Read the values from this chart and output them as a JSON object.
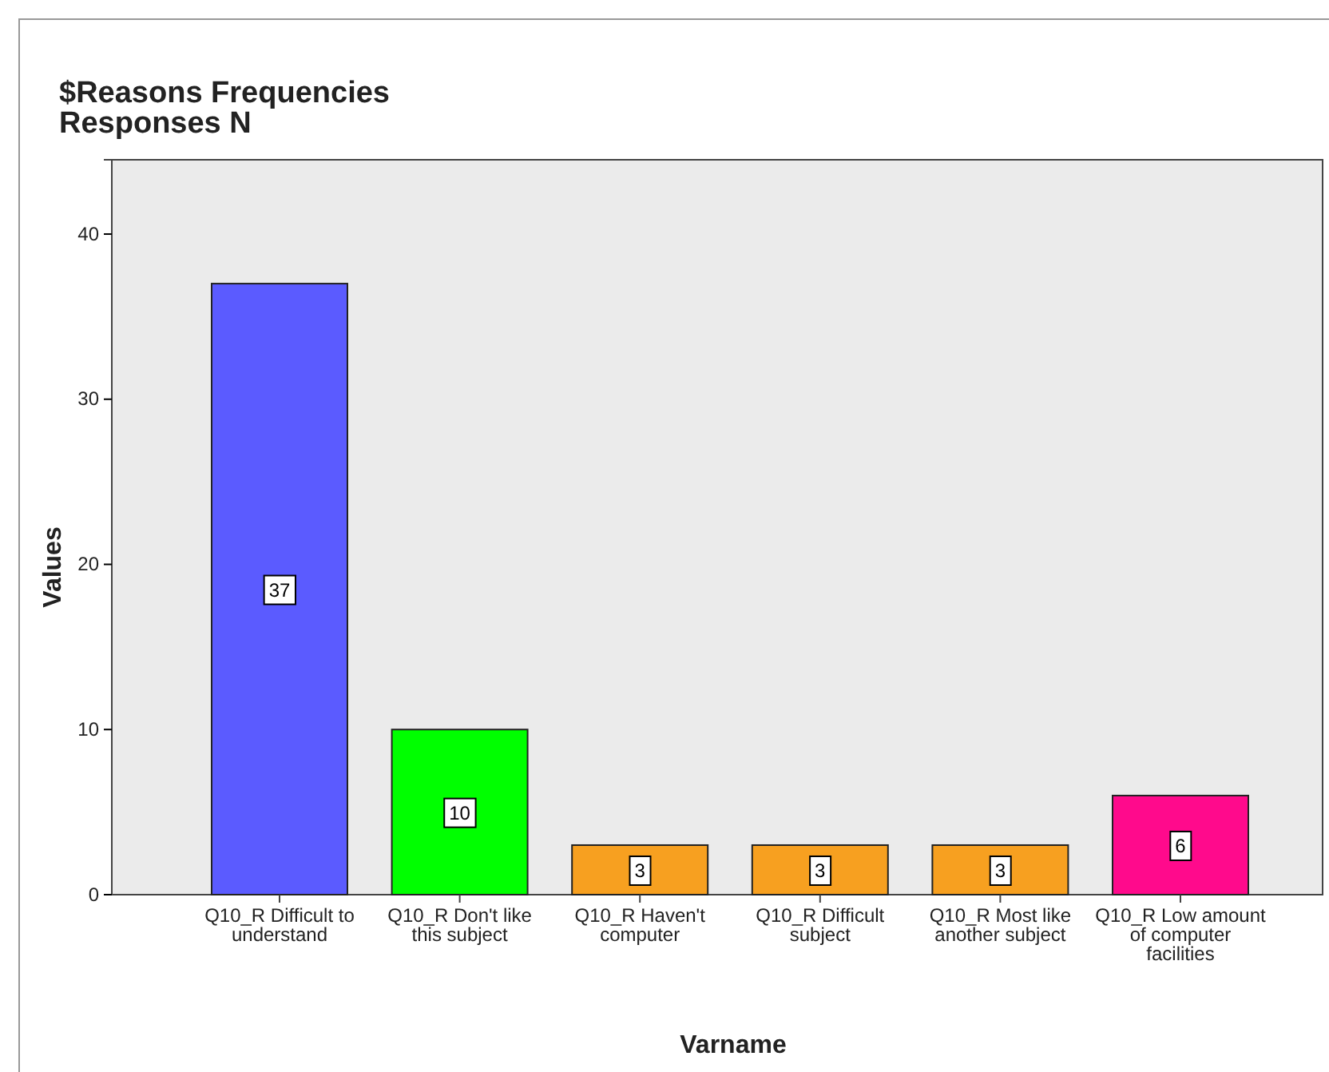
{
  "chart_data": {
    "type": "bar",
    "title": "$Reasons Frequencies",
    "subtitle": "Responses N",
    "categories": [
      "Q10_R Difficult to understand",
      "Q10_R Don't like this subject",
      "Q10_R Haven't computer",
      "Q10_R Difficult subject",
      "Q10_R Most like another subject",
      "Q10_R Low amount of computer facilities"
    ],
    "values": [
      37,
      10,
      3,
      3,
      3,
      6
    ],
    "colors": [
      "#5b5bff",
      "#00ff00",
      "#f7a020",
      "#f7a020",
      "#f7a020",
      "#ff0a8c"
    ],
    "xlabel": "Varname",
    "ylabel": "Values",
    "ylim": [
      0,
      44.5
    ],
    "yticks": [
      0,
      10,
      20,
      30,
      40
    ],
    "data_labels": true,
    "grid": false
  }
}
